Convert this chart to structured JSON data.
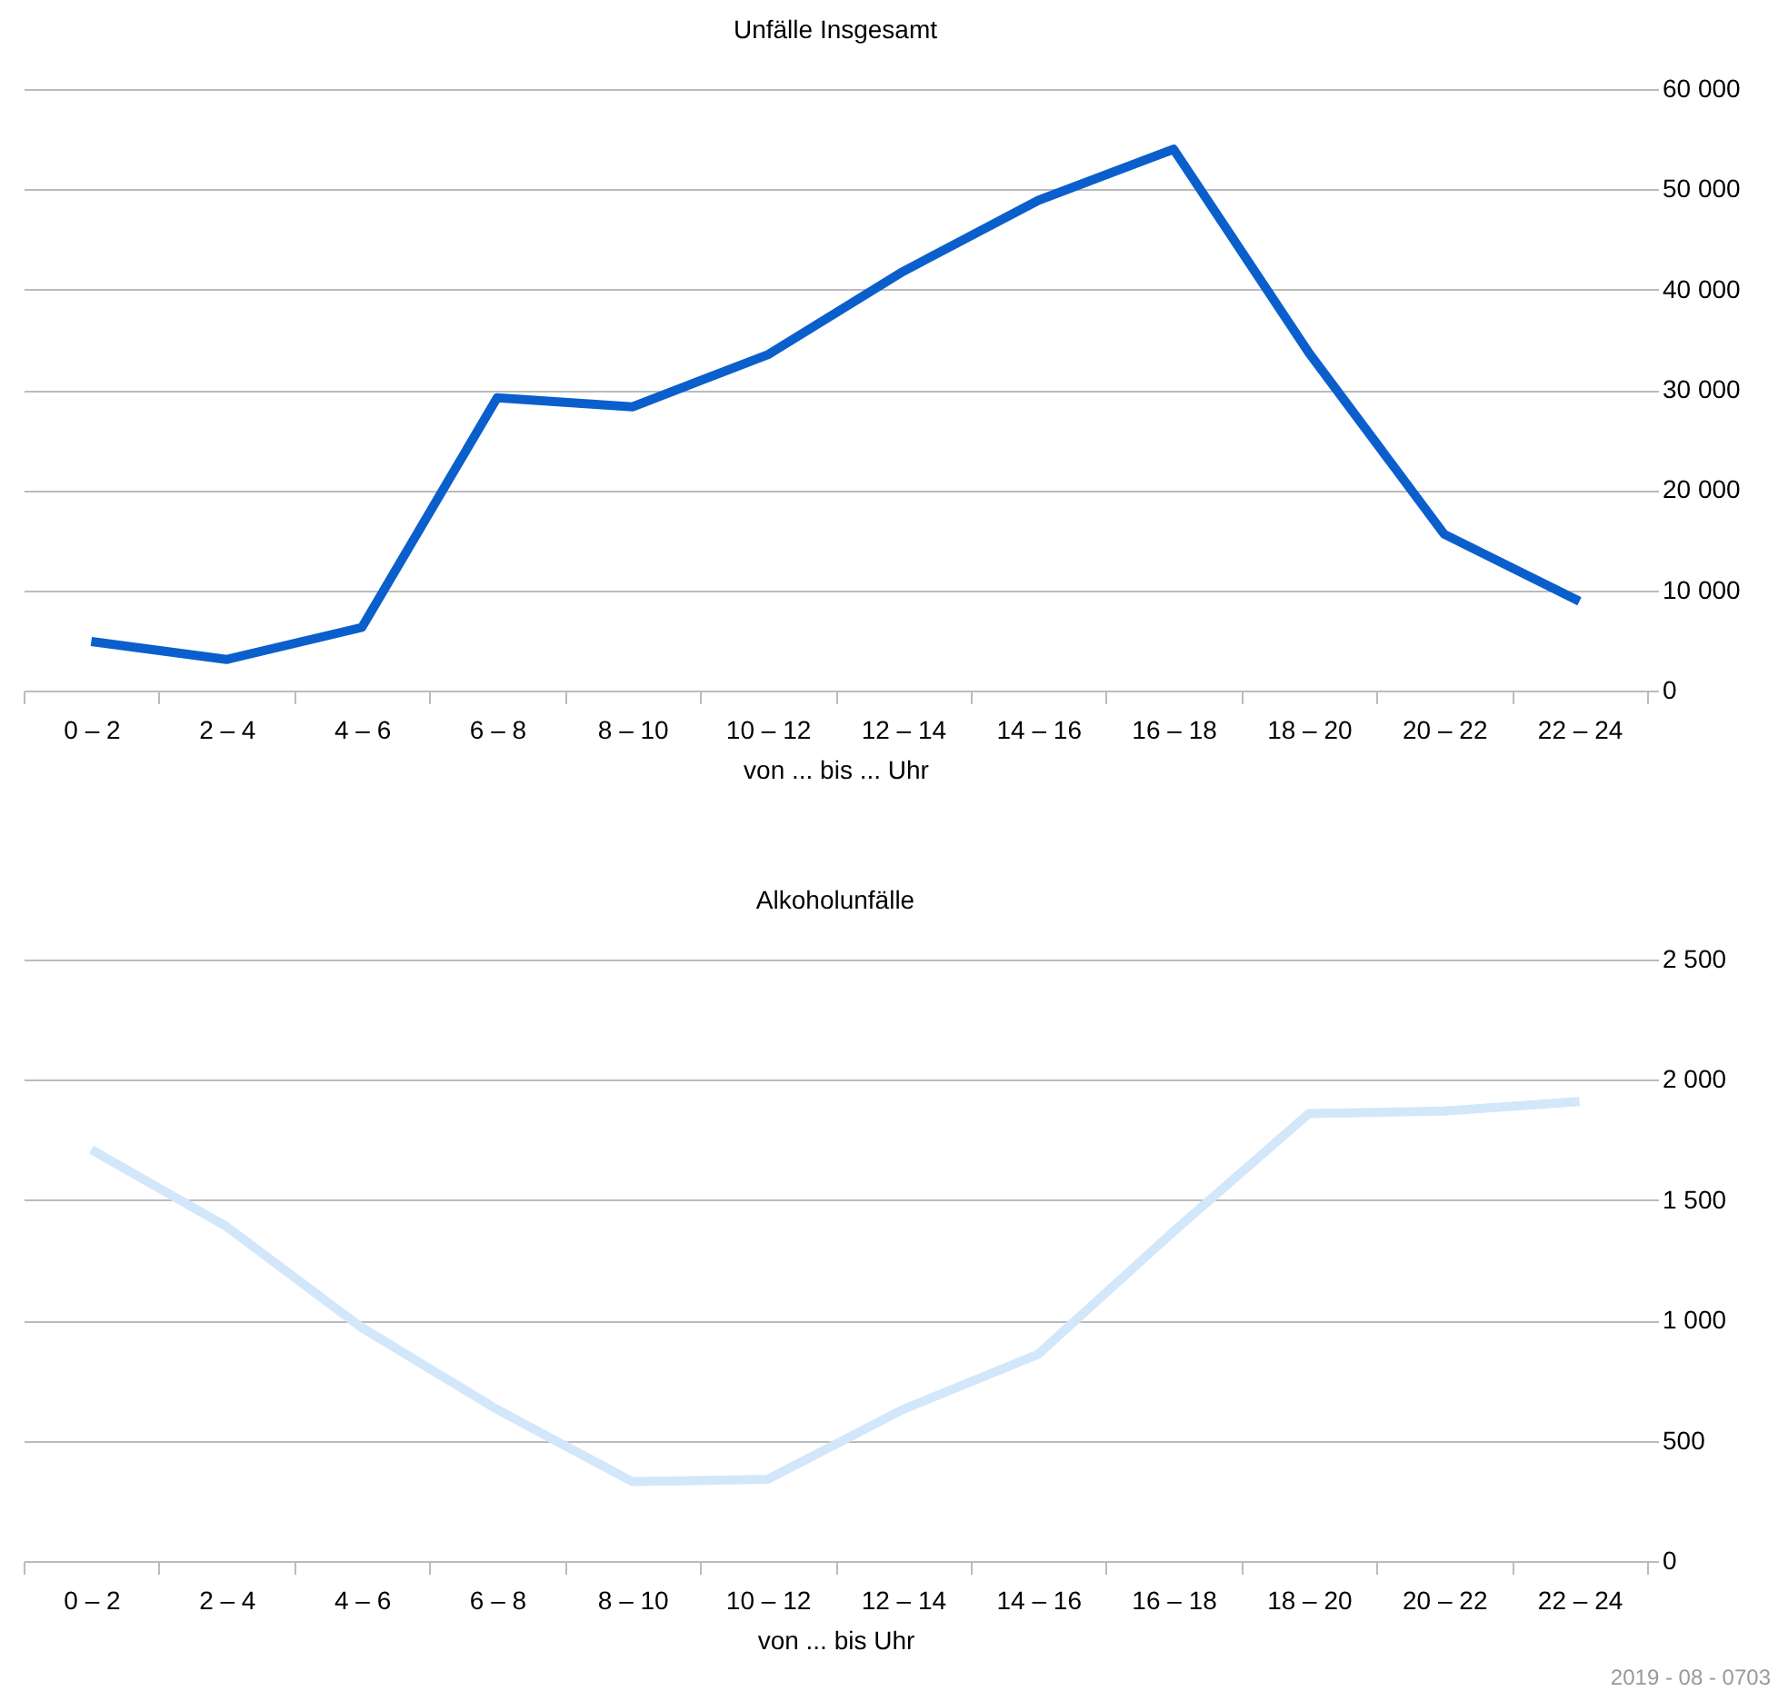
{
  "chart_data": [
    {
      "type": "line",
      "title": "Unfälle Insgesamt",
      "xlabel": "von ... bis ... Uhr",
      "categories": [
        "0 – 2",
        "2 – 4",
        "4 – 6",
        "6 – 8",
        "8 – 10",
        "10 – 12",
        "12 – 14",
        "14 – 16",
        "16 – 18",
        "18 – 20",
        "20 – 22",
        "22 – 24"
      ],
      "series": [
        {
          "color": "#0a5fcc",
          "values": [
            4900,
            3100,
            6300,
            29200,
            28300,
            33500,
            41800,
            48900,
            54000,
            33700,
            15600,
            8900
          ]
        }
      ],
      "ylim": [
        0,
        60000
      ],
      "yticks": [
        {
          "value": 0,
          "label": "0"
        },
        {
          "value": 10000,
          "label": "10 000"
        },
        {
          "value": 20000,
          "label": "20 000"
        },
        {
          "value": 30000,
          "label": "30 000"
        },
        {
          "value": 40000,
          "label": "40 000"
        },
        {
          "value": 50000,
          "label": "50 000"
        },
        {
          "value": 60000,
          "label": "60 000"
        }
      ],
      "grid": "y",
      "legend": false
    },
    {
      "type": "line",
      "title": "Alkoholunfälle",
      "xlabel": "von ... bis  Uhr",
      "categories": [
        "0 – 2",
        "2 – 4",
        "4 – 6",
        "6 – 8",
        "8 – 10",
        "10 – 12",
        "12 – 14",
        "14 – 16",
        "16 – 18",
        "18 – 20",
        "20 – 22",
        "22 – 24"
      ],
      "series": [
        {
          "color": "#d3e7fb",
          "values": [
            1710,
            1390,
            970,
            630,
            330,
            340,
            630,
            860,
            1370,
            1860,
            1870,
            1910
          ]
        }
      ],
      "ylim": [
        0,
        2500
      ],
      "yticks": [
        {
          "value": 0,
          "label": "0"
        },
        {
          "value": 500,
          "label": "500"
        },
        {
          "value": 1000,
          "label": "1 000"
        },
        {
          "value": 1500,
          "label": "1 500"
        },
        {
          "value": 2000,
          "label": "2 000"
        },
        {
          "value": 2500,
          "label": "2 500"
        }
      ],
      "grid": "y",
      "legend": false,
      "annotations": [
        "2019 - 08 - 0703"
      ]
    }
  ]
}
